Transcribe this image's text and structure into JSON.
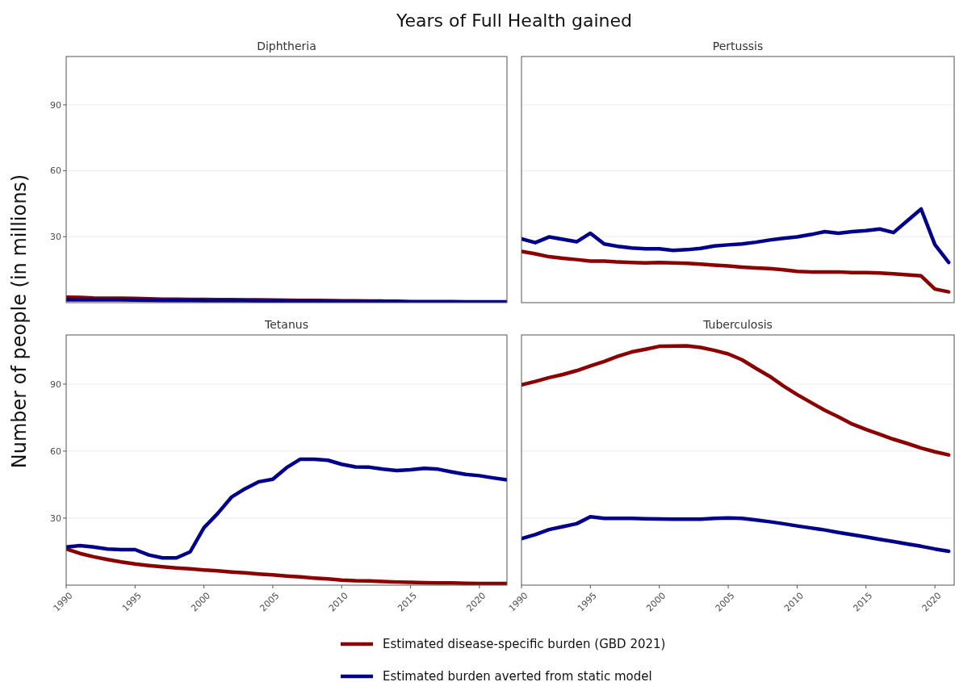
{
  "chart_data": [
    {
      "type": "line",
      "title": "Diphtheria",
      "annotations": [
        "Years of Full Health gained"
      ],
      "ylabel": "Number of people (in millions)",
      "xlim": [
        1990,
        2022
      ],
      "ylim": [
        0,
        112
      ],
      "yticks": [
        30,
        60,
        90
      ],
      "grid": "y",
      "legend": "bottom",
      "tick_labels": "y",
      "x": [
        1990,
        1991,
        1992,
        1993,
        1994,
        1995,
        1996,
        1997,
        1998,
        1999,
        2000,
        2001,
        2002,
        2003,
        2004,
        2005,
        2006,
        2007,
        2008,
        2009,
        2010,
        2011,
        2012,
        2013,
        2014,
        2015,
        2016,
        2017,
        2018,
        2019,
        2020,
        2021,
        2022
      ],
      "series": [
        {
          "name": "Estimated disease-specific burden (GBD 2021)",
          "color": "#8b0000",
          "values": [
            2.5,
            2.4,
            2.1,
            2.0,
            2.0,
            1.9,
            1.7,
            1.6,
            1.6,
            1.5,
            1.5,
            1.4,
            1.4,
            1.3,
            1.3,
            1.2,
            1.1,
            1.0,
            1.0,
            0.9,
            0.8,
            0.8,
            0.7,
            0.7,
            null,
            null,
            null,
            null,
            null,
            null,
            null,
            null,
            null
          ]
        },
        {
          "name": "Estimated burden averted from static model",
          "color": "#00008b",
          "values": [
            1.3,
            1.3,
            1.3,
            1.3,
            1.3,
            1.2,
            1.1,
            1.0,
            1.0,
            1.0,
            0.9,
            0.9,
            0.9,
            0.9,
            0.8,
            0.8,
            0.8,
            0.7,
            0.7,
            0.7,
            0.6,
            0.6,
            0.6,
            0.6,
            0.6,
            0.5,
            0.5,
            0.5,
            0.5,
            0.4,
            0.4,
            0.4,
            0.4
          ]
        }
      ]
    },
    {
      "type": "line",
      "title": "Pertussis",
      "xlim": [
        1990,
        2021.4
      ],
      "ylim": [
        0,
        112
      ],
      "yticks": [
        30,
        60,
        90
      ],
      "grid": "y",
      "tick_labels": false,
      "x": [
        1990,
        1991,
        1992,
        1993,
        1994,
        1995,
        1996,
        1997,
        1998,
        1999,
        2000,
        2001,
        2002,
        2003,
        2004,
        2005,
        2006,
        2007,
        2008,
        2009,
        2010,
        2011,
        2012,
        2013,
        2014,
        2015,
        2016,
        2017,
        2018,
        2019,
        2020,
        2021
      ],
      "series": [
        {
          "color": "#8b0000",
          "values": [
            23.3,
            22.2,
            20.9,
            20.2,
            19.6,
            18.9,
            18.9,
            18.5,
            18.3,
            18.1,
            18.3,
            18.1,
            17.9,
            17.5,
            17.1,
            16.7,
            16.2,
            15.8,
            15.5,
            15.0,
            14.2,
            14.0,
            14.0,
            14.0,
            13.7,
            13.7,
            13.5,
            13.1,
            12.7,
            12.2,
            6.2,
            4.9
          ]
        },
        {
          "color": "#00008b",
          "values": [
            29.0,
            27.3,
            29.9,
            28.8,
            27.7,
            31.6,
            26.7,
            25.6,
            24.9,
            24.5,
            24.5,
            23.8,
            24.1,
            24.7,
            25.8,
            26.3,
            26.7,
            27.5,
            28.5,
            29.3,
            29.9,
            31.0,
            32.3,
            31.6,
            32.3,
            32.8,
            33.5,
            31.9,
            37.3,
            42.6,
            26.4,
            18.3
          ]
        }
      ]
    },
    {
      "type": "line",
      "title": "Tetanus",
      "xlim": [
        1990,
        2022
      ],
      "xticks": [
        1990,
        1995,
        2000,
        2005,
        2010,
        2015,
        2020
      ],
      "ylim": [
        0,
        112
      ],
      "yticks": [
        30,
        60,
        90
      ],
      "grid": "y",
      "x": [
        1990,
        1991,
        1992,
        1993,
        1994,
        1995,
        1996,
        1997,
        1998,
        1999,
        2000,
        2001,
        2002,
        2003,
        2004,
        2005,
        2006,
        2007,
        2008,
        2009,
        2010,
        2011,
        2012,
        2013,
        2014,
        2015,
        2016,
        2017,
        2018,
        2019,
        2020,
        2021,
        2022
      ],
      "series": [
        {
          "color": "#8b0000",
          "values": [
            16.2,
            14.2,
            12.7,
            11.5,
            10.4,
            9.5,
            8.8,
            8.2,
            7.7,
            7.3,
            6.8,
            6.4,
            5.9,
            5.5,
            5.0,
            4.6,
            4.1,
            3.7,
            3.2,
            2.8,
            2.3,
            2.0,
            1.9,
            1.6,
            1.4,
            1.3,
            1.1,
            1.0,
            1.0,
            0.8,
            0.7,
            0.7,
            0.7
          ]
        },
        {
          "color": "#00008b",
          "values": [
            17.1,
            17.7,
            17.1,
            16.2,
            15.9,
            15.9,
            13.5,
            12.2,
            12.2,
            14.9,
            25.7,
            32.1,
            39.4,
            43.2,
            46.3,
            47.4,
            52.6,
            56.4,
            56.4,
            55.9,
            54.1,
            52.9,
            52.8,
            51.9,
            51.3,
            51.7,
            52.3,
            51.9,
            50.7,
            49.6,
            49.0,
            48.0,
            47.1
          ]
        }
      ]
    },
    {
      "type": "line",
      "title": "Tuberculosis",
      "xlim": [
        1990,
        2021.4
      ],
      "xticks": [
        1990,
        1995,
        2000,
        2005,
        2010,
        2015,
        2020
      ],
      "ylim": [
        0,
        112
      ],
      "yticks": [
        30,
        60,
        90
      ],
      "grid": "y",
      "tick_labels": "x",
      "x": [
        1990,
        1991,
        1992,
        1993,
        1994,
        1995,
        1996,
        1997,
        1998,
        1999,
        2000,
        2001,
        2002,
        2003,
        2004,
        2005,
        2006,
        2007,
        2008,
        2009,
        2010,
        2011,
        2012,
        2013,
        2014,
        2015,
        2016,
        2017,
        2018,
        2019,
        2020,
        2021
      ],
      "series": [
        {
          "color": "#8b0000",
          "values": [
            89.7,
            91.2,
            92.9,
            94.3,
            96.0,
            98.1,
            100.1,
            102.5,
            104.4,
            105.6,
            106.9,
            107.0,
            107.1,
            106.4,
            105.1,
            103.5,
            100.9,
            97.1,
            93.5,
            89.2,
            85.3,
            81.8,
            78.3,
            75.3,
            72.1,
            69.7,
            67.5,
            65.3,
            63.4,
            61.4,
            59.7,
            58.3
          ]
        },
        {
          "color": "#00008b",
          "values": [
            20.8,
            22.6,
            24.9,
            26.2,
            27.5,
            30.6,
            29.9,
            29.9,
            29.9,
            29.7,
            29.6,
            29.5,
            29.5,
            29.5,
            29.9,
            30.1,
            29.9,
            29.2,
            28.4,
            27.5,
            26.5,
            25.6,
            24.7,
            23.6,
            22.6,
            21.6,
            20.5,
            19.5,
            18.4,
            17.4,
            16.2,
            15.2
          ]
        }
      ]
    }
  ]
}
